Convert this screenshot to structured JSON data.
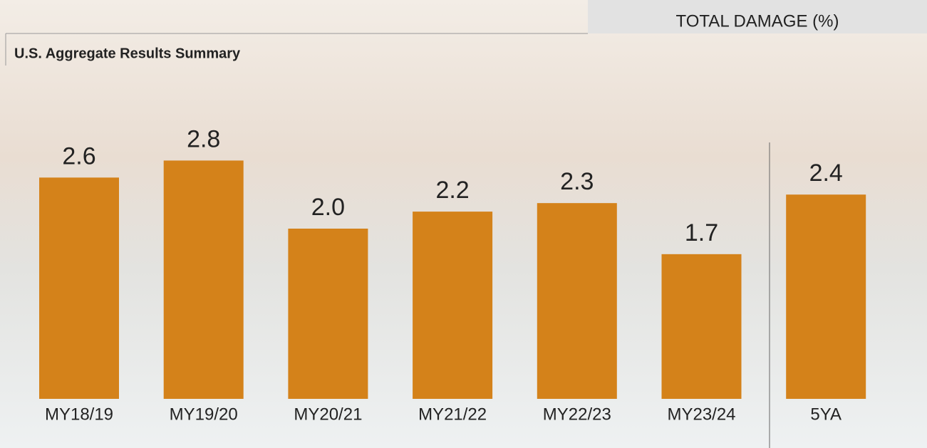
{
  "chart_data": {
    "type": "bar",
    "title": "U.S. Aggregate Results Summary",
    "subtitle": "TOTAL DAMAGE (%)",
    "categories": [
      "MY18/19",
      "MY19/20",
      "MY20/21",
      "MY21/22",
      "MY22/23",
      "MY23/24",
      "5YA"
    ],
    "values": [
      2.6,
      2.8,
      2.0,
      2.2,
      2.3,
      1.7,
      2.4
    ],
    "value_labels": [
      "2.6",
      "2.8",
      "2.0",
      "2.2",
      "2.3",
      "1.7",
      "2.4"
    ],
    "color": "#d4821a"
  }
}
